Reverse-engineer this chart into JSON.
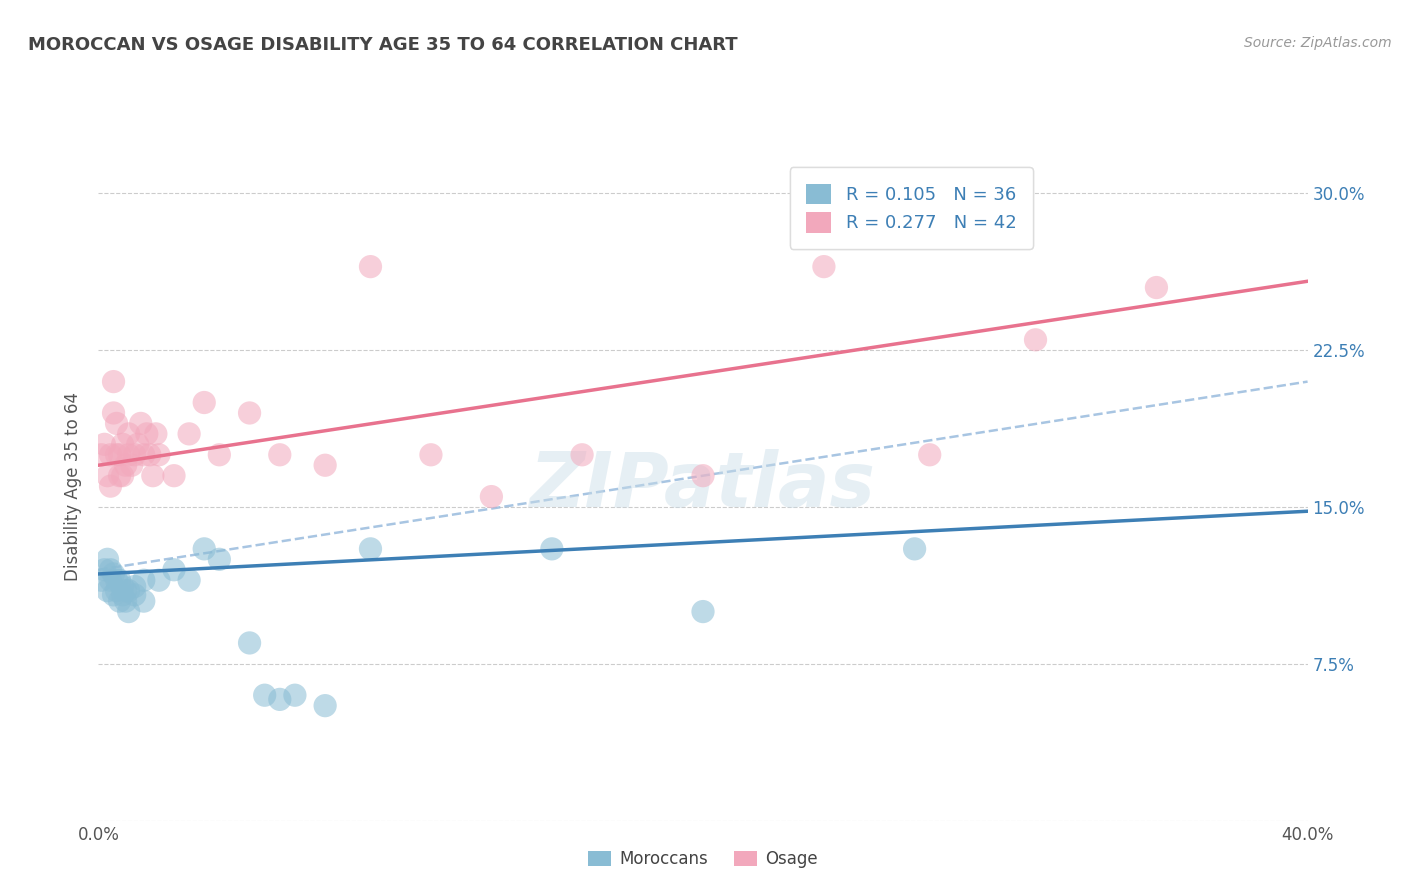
{
  "title": "MOROCCAN VS OSAGE DISABILITY AGE 35 TO 64 CORRELATION CHART",
  "source": "Source: ZipAtlas.com",
  "ylabel": "Disability Age 35 to 64",
  "xlim": [
    0.0,
    0.4
  ],
  "ylim": [
    0.0,
    0.32
  ],
  "xticks": [
    0.0,
    0.1,
    0.2,
    0.3,
    0.4
  ],
  "xticklabels": [
    "0.0%",
    "",
    "",
    "",
    "40.0%"
  ],
  "yticks": [
    0.0,
    0.075,
    0.15,
    0.225,
    0.3
  ],
  "yticklabels_left": [
    "",
    "",
    "",
    "",
    ""
  ],
  "yticklabels_right": [
    "",
    "7.5%",
    "15.0%",
    "22.5%",
    "30.0%"
  ],
  "blue_R": 0.105,
  "blue_N": 36,
  "pink_R": 0.277,
  "pink_N": 42,
  "blue_color": "#89bcd4",
  "pink_color": "#f2a8bc",
  "blue_line_color": "#3d7fb5",
  "pink_line_color": "#e8728e",
  "dashed_line_color": "#99bbdd",
  "watermark": "ZIPatlas",
  "legend_label_blue": "Moroccans",
  "legend_label_pink": "Osage",
  "blue_scatter_x": [
    0.001,
    0.002,
    0.003,
    0.003,
    0.004,
    0.004,
    0.005,
    0.005,
    0.006,
    0.006,
    0.007,
    0.007,
    0.008,
    0.008,
    0.009,
    0.009,
    0.01,
    0.01,
    0.012,
    0.012,
    0.015,
    0.015,
    0.02,
    0.025,
    0.03,
    0.035,
    0.04,
    0.05,
    0.055,
    0.06,
    0.065,
    0.075,
    0.09,
    0.15,
    0.2,
    0.27
  ],
  "blue_scatter_y": [
    0.115,
    0.12,
    0.11,
    0.125,
    0.115,
    0.12,
    0.108,
    0.118,
    0.11,
    0.115,
    0.105,
    0.115,
    0.108,
    0.112,
    0.105,
    0.11,
    0.1,
    0.11,
    0.108,
    0.112,
    0.105,
    0.115,
    0.115,
    0.12,
    0.115,
    0.13,
    0.125,
    0.085,
    0.06,
    0.058,
    0.06,
    0.055,
    0.13,
    0.13,
    0.1,
    0.13
  ],
  "pink_scatter_x": [
    0.001,
    0.002,
    0.003,
    0.004,
    0.004,
    0.005,
    0.005,
    0.006,
    0.006,
    0.007,
    0.007,
    0.008,
    0.008,
    0.009,
    0.01,
    0.01,
    0.011,
    0.012,
    0.013,
    0.014,
    0.015,
    0.016,
    0.017,
    0.018,
    0.019,
    0.02,
    0.025,
    0.03,
    0.035,
    0.04,
    0.05,
    0.06,
    0.075,
    0.09,
    0.11,
    0.13,
    0.16,
    0.2,
    0.24,
    0.275,
    0.31,
    0.35
  ],
  "pink_scatter_y": [
    0.175,
    0.18,
    0.165,
    0.16,
    0.175,
    0.195,
    0.21,
    0.175,
    0.19,
    0.165,
    0.175,
    0.165,
    0.18,
    0.17,
    0.175,
    0.185,
    0.17,
    0.175,
    0.18,
    0.19,
    0.175,
    0.185,
    0.175,
    0.165,
    0.185,
    0.175,
    0.165,
    0.185,
    0.2,
    0.175,
    0.195,
    0.175,
    0.17,
    0.265,
    0.175,
    0.155,
    0.175,
    0.165,
    0.265,
    0.175,
    0.23,
    0.255
  ],
  "pink_line_start_y": 0.17,
  "pink_line_end_y": 0.258,
  "blue_line_start_y": 0.118,
  "blue_line_end_y": 0.148,
  "dashed_line_start_y": 0.12,
  "dashed_line_end_y": 0.21
}
